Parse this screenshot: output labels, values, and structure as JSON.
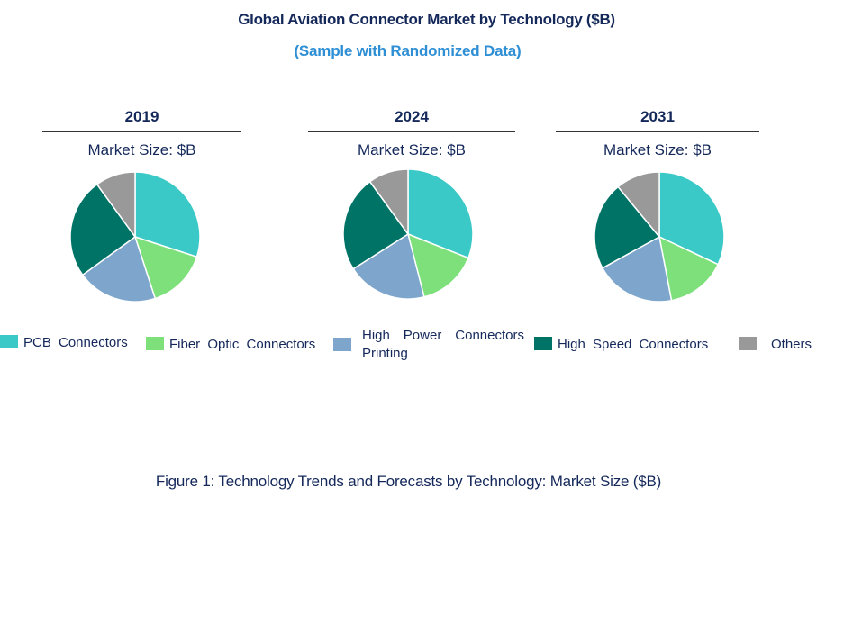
{
  "header": {
    "title": "Global Aviation Connector Market by Technology ($B)",
    "subtitle": "(Sample with Randomized Data)"
  },
  "caption": "Figure 1: Technology Trends and Forecasts by Technology: Market Size ($B)",
  "colors": {
    "pcb": "#3ac9c6",
    "fiber": "#7de07a",
    "high_power": "#7ea6cc",
    "high_speed": "#007367",
    "others": "#999999"
  },
  "chart_data": [
    {
      "type": "pie",
      "title": "2019",
      "subtitle": "Market Size: $B",
      "categories": [
        "PCB Connectors",
        "Fiber Optic Connectors",
        "High Power Connectors Printing",
        "High Speed Connectors",
        "Others"
      ],
      "values": [
        30,
        15,
        20,
        25,
        10
      ]
    },
    {
      "type": "pie",
      "title": "2024",
      "subtitle": "Market Size: $B",
      "categories": [
        "PCB Connectors",
        "Fiber Optic Connectors",
        "High Power Connectors Printing",
        "High Speed Connectors",
        "Others"
      ],
      "values": [
        31,
        15,
        20,
        24,
        10
      ]
    },
    {
      "type": "pie",
      "title": "2031",
      "subtitle": "Market Size: $B",
      "categories": [
        "PCB Connectors",
        "Fiber Optic Connectors",
        "High Power Connectors Printing",
        "High Speed Connectors",
        "Others"
      ],
      "values": [
        32,
        15,
        20,
        22,
        11
      ]
    }
  ],
  "legend": [
    {
      "label": "PCB Connectors",
      "color": "#3ac9c6"
    },
    {
      "label": "Fiber Optic Connectors",
      "color": "#7de07a"
    },
    {
      "label": "High Power Connectors Printing",
      "color": "#7ea6cc"
    },
    {
      "label": "High Speed Connectors",
      "color": "#007367"
    },
    {
      "label": "Others",
      "color": "#999999"
    }
  ]
}
